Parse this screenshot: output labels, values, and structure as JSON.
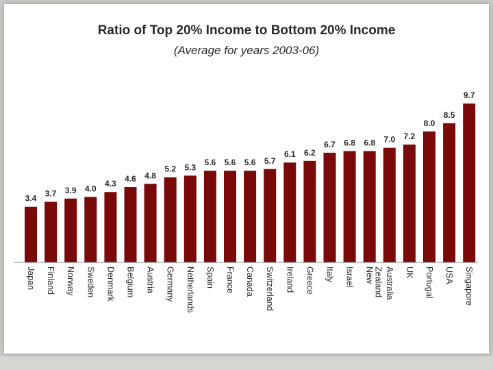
{
  "chart_data": {
    "type": "bar",
    "title": "Ratio of Top 20% Income to Bottom 20% Income",
    "subtitle": "(Average for years 2003-06)",
    "categories": [
      "Japan",
      "Finland",
      "Norway",
      "Sweden",
      "Denmark",
      "Belgium",
      "Austria",
      "Germany",
      "Netherlands",
      "Spain",
      "France",
      "Canada",
      "Switzerland",
      "Ireland",
      "Greece",
      "Italy",
      "Israel",
      "New Zealand",
      "Australia",
      "UK",
      "Portugal",
      "USA",
      "Singapore"
    ],
    "category_lines": [
      [
        "Japan"
      ],
      [
        "Finland"
      ],
      [
        "Norway"
      ],
      [
        "Sweden"
      ],
      [
        "Denmark"
      ],
      [
        "Belgium"
      ],
      [
        "Austria"
      ],
      [
        "Germany"
      ],
      [
        "Netherlands"
      ],
      [
        "Spain"
      ],
      [
        "France"
      ],
      [
        "Canada"
      ],
      [
        "Switzerland"
      ],
      [
        "Ireland"
      ],
      [
        "Greece"
      ],
      [
        "Italy"
      ],
      [
        "Israel"
      ],
      [
        "New",
        "Zealand"
      ],
      [
        "Australia"
      ],
      [
        "UK"
      ],
      [
        "Portugal"
      ],
      [
        "USA"
      ],
      [
        "Singapore"
      ]
    ],
    "values": [
      3.4,
      3.7,
      3.9,
      4.0,
      4.3,
      4.6,
      4.8,
      5.2,
      5.3,
      5.6,
      5.6,
      5.6,
      5.7,
      6.1,
      6.2,
      6.7,
      6.8,
      6.8,
      7.0,
      7.2,
      8.0,
      8.5,
      9.7
    ],
    "value_labels": [
      "3.4",
      "3.7",
      "3.9",
      "4.0",
      "4.3",
      "4.6",
      "4.8",
      "5.2",
      "5.3",
      "5.6",
      "5.6",
      "5.6",
      "5.7",
      "6.1",
      "6.2",
      "6.7",
      "6.8",
      "6.8",
      "7.0",
      "7.2",
      "8.0",
      "8.5",
      "9.7"
    ],
    "ylim": [
      0,
      10
    ],
    "xlabel": "",
    "ylabel": "",
    "bar_color": "#7a0a0a",
    "grid": false,
    "legend": "none"
  }
}
